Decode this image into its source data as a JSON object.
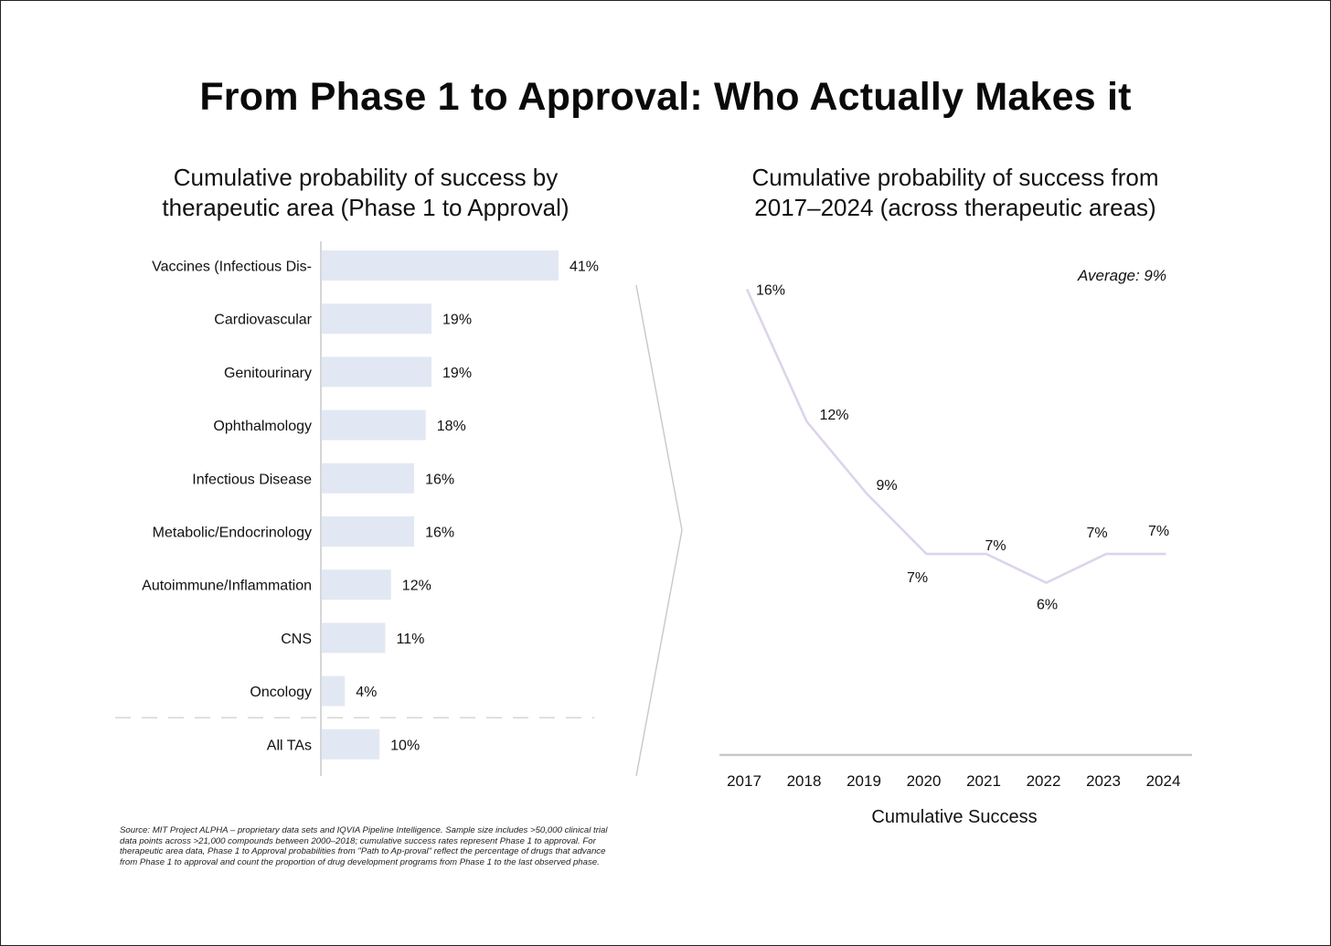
{
  "title": "From Phase 1 to Approval: Who Actually Makes it",
  "footnote": "Source: MIT Project ALPHA – proprietary data sets and IQVIA Pipeline Intelligence. Sample size includes >50,000 clinical trial data points across >21,000 compounds between 2000–2018; cumulative success rates represent Phase 1 to approval. For therapeutic area data, Phase 1 to Approval probabilities from \"Path to Ap-proval\" reflect the percentage of drugs that advance from Phase 1 to approval and count the proportion of drug development programs from Phase 1 to the last observed phase.",
  "colors": {
    "bar_fill": "#e2e8f3",
    "line_stroke": "#ddd4ea",
    "axis": "#c8c8cc",
    "divider": "#c8c8c8"
  },
  "chart_data": [
    {
      "type": "bar",
      "orientation": "horizontal",
      "title": "Cumulative probability of success by\ntherapeutic area (Phase 1 to Approval)",
      "categories": [
        "Vaccines (Infectious Dis-",
        "Cardiovascular",
        "Genitourinary",
        "Ophthalmology",
        "Infectious Disease",
        "Metabolic/Endocrinology",
        "Autoimmune/Inflammation",
        "CNS",
        "Oncology",
        "All TAs"
      ],
      "values": [
        41,
        19,
        19,
        18,
        16,
        16,
        12,
        11,
        4,
        10
      ],
      "value_labels": [
        "41%",
        "19%",
        "19%",
        "18%",
        "16%",
        "16%",
        "12%",
        "11%",
        "4%",
        "10%"
      ],
      "xlim": [
        0,
        41
      ],
      "grid": false,
      "separator_before": "All TAs"
    },
    {
      "type": "line",
      "title": "Cumulative probability of success from\n2017–2024 (across therapeutic areas)",
      "x": [
        "2017",
        "2018",
        "2019",
        "2020",
        "2021",
        "2022",
        "2023",
        "2024"
      ],
      "values": [
        16.2,
        11.6,
        9.1,
        7.0,
        7.0,
        6.0,
        7.0,
        7.0
      ],
      "value_labels": [
        "16%",
        "12%",
        "9%",
        "7%",
        "7%",
        "6%",
        "7%",
        "7%"
      ],
      "xlabel": "Cumulative Success",
      "annotation": "Average: 9%",
      "ylim": [
        0,
        17
      ],
      "grid": false
    }
  ]
}
